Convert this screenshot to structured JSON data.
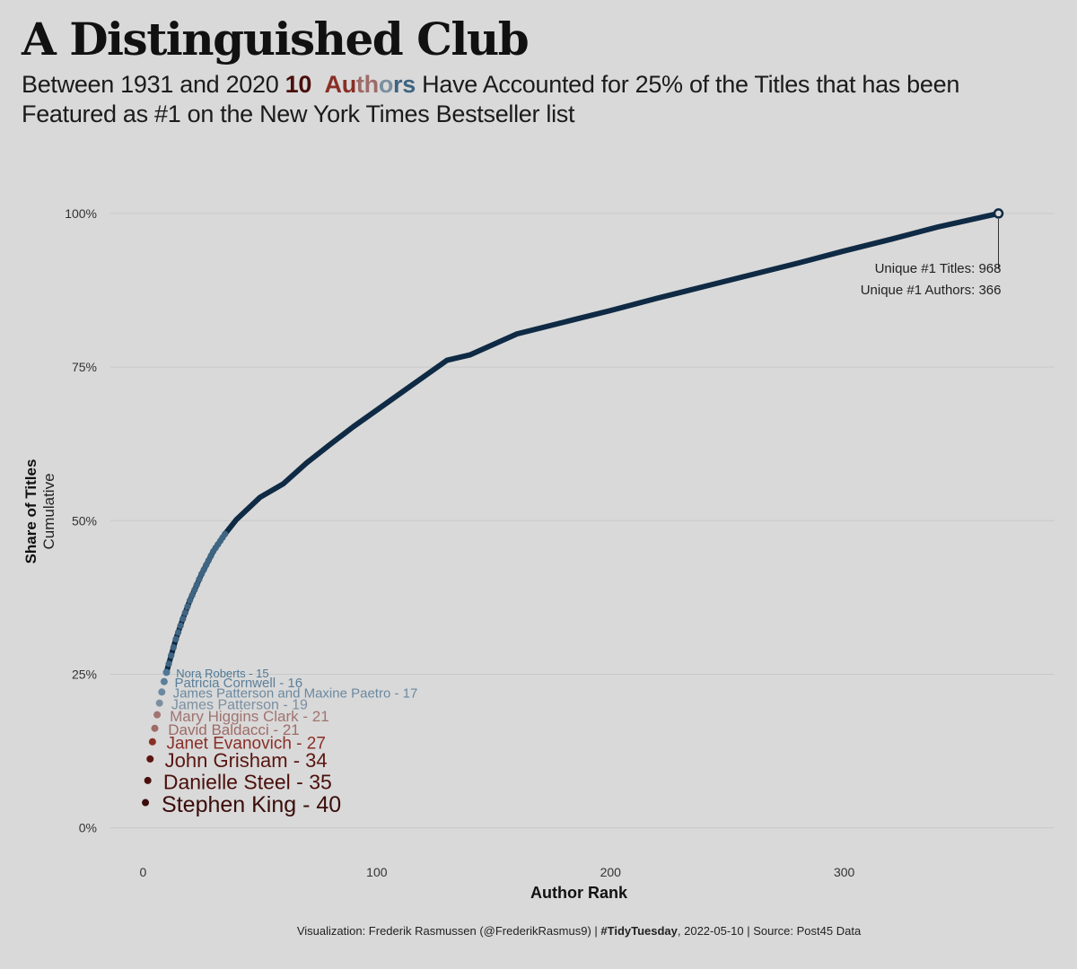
{
  "header": {
    "title": "A Distinguished Club",
    "subtitle_part1": "Between 1931 and 2020 ",
    "subtitle_number": "10",
    "subtitle_authors_letters": [
      "Au",
      "th",
      "o",
      "rs"
    ],
    "subtitle_part2": " Have Accounted for 25% of the Titles that has been Featured as #1 on the New York Times Bestseller list"
  },
  "caption": {
    "part1": "Visualization: Frederik Rasmussen (@FrederikRasmus9) | ",
    "hashtag": "#TidyTuesday",
    "part2": ", 2022-05-10 | Source: Post45 Data"
  },
  "colors": {
    "background": "#d9d9d9",
    "line": "#0f2a44",
    "grid": "#c9c9c9",
    "dark_red": "#4a0f0c",
    "red": "#8a2e26",
    "rose": "#9e6b67",
    "grey_blue": "#7b8fa0",
    "steel_blue": "#4f7896"
  },
  "chart_data": {
    "type": "line",
    "xlabel": "Author Rank",
    "ylabel": "Share of Titles",
    "ylabel_sub": "Cumulative",
    "xlim": [
      -14,
      390
    ],
    "ylim": [
      -0.04,
      1.07
    ],
    "x_ticks": [
      0,
      100,
      200,
      300
    ],
    "x_tick_labels": [
      "0",
      "100",
      "200",
      "300"
    ],
    "y_ticks": [
      0,
      0.25,
      0.5,
      0.75,
      1.0
    ],
    "y_tick_labels": [
      "0%",
      "25%",
      "50%",
      "75%",
      "100%"
    ],
    "grid": "horizontal",
    "top_authors": [
      {
        "rank": 1,
        "label": "Stephen King - 40",
        "y": 0.041,
        "color": "#3a0d0a"
      },
      {
        "rank": 2,
        "label": "Danielle Steel - 35",
        "y": 0.077,
        "color": "#4a0f0c"
      },
      {
        "rank": 3,
        "label": "John Grisham - 34",
        "y": 0.112,
        "color": "#5a1510"
      },
      {
        "rank": 4,
        "label": "Janet Evanovich - 27",
        "y": 0.14,
        "color": "#8a2e26"
      },
      {
        "rank": 5,
        "label": "David Baldacci - 21",
        "y": 0.162,
        "color": "#9e6b67"
      },
      {
        "rank": 6,
        "label": "Mary Higgins Clark - 21",
        "y": 0.184,
        "color": "#a07470"
      },
      {
        "rank": 7,
        "label": "James Patterson - 19",
        "y": 0.203,
        "color": "#7b8fa0"
      },
      {
        "rank": 8,
        "label": "James Patterson and Maxine Paetro - 17",
        "y": 0.221,
        "color": "#6a89a0"
      },
      {
        "rank": 9,
        "label": "Patricia Cornwell - 16",
        "y": 0.238,
        "color": "#5a7f99"
      },
      {
        "rank": 10,
        "label": "Nora Roberts - 15",
        "y": 0.253,
        "color": "#4f7896"
      }
    ],
    "points": {
      "x": [
        11,
        14,
        17,
        20,
        25,
        30,
        35,
        40,
        50,
        60,
        70,
        80,
        90,
        100,
        110,
        120,
        130,
        140,
        160,
        180,
        200,
        220,
        240,
        260,
        280,
        300,
        320,
        340,
        366
      ],
      "y": [
        0.267,
        0.307,
        0.34,
        0.37,
        0.413,
        0.45,
        0.478,
        0.502,
        0.538,
        0.56,
        0.594,
        0.624,
        0.653,
        0.68,
        0.707,
        0.734,
        0.761,
        0.77,
        0.804,
        0.823,
        0.842,
        0.862,
        0.881,
        0.9,
        0.919,
        0.939,
        0.958,
        0.978,
        1.0
      ]
    },
    "end_annotation": {
      "line1": "Unique #1 Titles: 968",
      "line2": "Unique #1 Authors: 366"
    }
  }
}
